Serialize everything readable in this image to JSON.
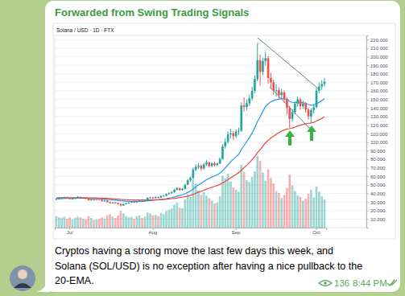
{
  "message": {
    "forwarded_from": "Forwarded from Swing Trading Signals",
    "caption": [
      "Cryptos having a strong move the last few days this week, and",
      "Solana (SOL/USD) is no exception after having a nice pullback to the",
      "20-EMA."
    ],
    "views": 136,
    "time": "8:44 PM"
  },
  "chart_data": {
    "type": "candlestick",
    "title": "Solana / USD · 1D · FTX",
    "categories": [
      null,
      null,
      null,
      null,
      null,
      "Jul",
      null,
      null,
      null,
      null,
      null,
      null,
      null,
      null,
      null,
      null,
      null,
      null,
      null,
      null,
      null,
      null,
      null,
      null,
      null,
      null,
      null,
      null,
      null,
      null,
      null,
      null,
      null,
      null,
      null,
      null,
      "Aug",
      null,
      null,
      null,
      null,
      null,
      null,
      null,
      null,
      null,
      null,
      null,
      null,
      null,
      null,
      null,
      null,
      null,
      null,
      null,
      null,
      null,
      null,
      null,
      null,
      null,
      null,
      null,
      null,
      null,
      null,
      "Sep",
      null,
      null,
      null,
      null,
      null,
      null,
      null,
      null,
      null,
      null,
      null,
      null,
      null,
      null,
      null,
      null,
      null,
      null,
      null,
      null,
      null,
      null,
      null,
      null,
      null,
      null,
      null,
      null,
      null,
      "Oct",
      null,
      null,
      null
    ],
    "series": [
      {
        "type": "candlestick",
        "open": [
          33.0,
          33.5,
          34.2,
          34.8,
          35.4,
          34.9,
          33.6,
          34.1,
          35.0,
          35.9,
          34.3,
          34.8,
          33.9,
          32.1,
          33.0,
          32.6,
          33.4,
          32.5,
          31.0,
          31.8,
          29.9,
          28.7,
          29.4,
          28.9,
          27.6,
          25.9,
          27.8,
          28.4,
          29.3,
          30.1,
          29.6,
          30.8,
          31.6,
          31.2,
          32.4,
          34.9,
          35.2,
          34.6,
          35.8,
          35.1,
          36.9,
          37.4,
          39.2,
          40.3,
          41.5,
          44.2,
          46.1,
          44.0,
          45.3,
          50.2,
          55.4,
          58.1,
          68.0,
          71.2,
          72.4,
          69.0,
          74.1,
          76.3,
          72.0,
          75.2,
          73.1,
          75.0,
          80.4,
          95.2,
          100.3,
          109.1,
          110.2,
          107.0,
          112.5,
          113.4,
          143.0,
          141.2,
          145.6,
          151.3,
          160.2,
          174.1,
          196.0,
          182.3,
          195.1,
          198.4,
          175.2,
          170.0,
          160.4,
          160.9,
          155.1,
          158.3,
          150.2,
          140.1,
          127.3,
          135.2,
          145.0,
          150.1,
          142.2,
          145.3,
          138.1,
          130.2,
          137.4,
          141.0,
          160.3,
          165.2,
          168.1
        ],
        "high": [
          34.6,
          35.1,
          35.9,
          36.5,
          36.2,
          35.5,
          35.0,
          35.8,
          36.9,
          36.4,
          35.7,
          35.3,
          34.4,
          33.8,
          33.9,
          34.2,
          33.9,
          33.0,
          32.6,
          32.2,
          30.5,
          30.1,
          30.0,
          29.4,
          28.0,
          28.4,
          29.1,
          30.0,
          30.9,
          30.8,
          31.5,
          32.4,
          32.3,
          33.1,
          35.6,
          36.3,
          35.9,
          36.6,
          36.5,
          37.6,
          38.5,
          40.1,
          41.4,
          42.8,
          45.3,
          47.6,
          46.9,
          46.4,
          51.4,
          56.9,
          59.7,
          70.2,
          74.1,
          75.3,
          73.8,
          75.6,
          78.9,
          77.5,
          76.4,
          76.9,
          76.3,
          82.1,
          97.8,
          104.5,
          112.6,
          115.3,
          113.1,
          114.8,
          117.2,
          146.5,
          152.4,
          149.8,
          155.1,
          165.0,
          178.3,
          216.0,
          202.5,
          199.2,
          205.3,
          201.1,
          181.4,
          173.2,
          168.1,
          164.2,
          162.7,
          160.5,
          152.3,
          142.6,
          138.4,
          148.3,
          153.2,
          152.0,
          148.6,
          147.0,
          140.2,
          139.5,
          144.3,
          163.5,
          169.8,
          172.6,
          175.2
        ],
        "low": [
          32.1,
          32.9,
          33.6,
          34.0,
          33.8,
          32.8,
          32.9,
          33.5,
          34.4,
          33.6,
          33.7,
          33.1,
          31.5,
          31.3,
          31.9,
          32.0,
          31.8,
          30.4,
          30.3,
          29.3,
          27.9,
          28.1,
          28.2,
          26.8,
          24.8,
          25.4,
          27.2,
          27.9,
          28.8,
          29.0,
          29.1,
          30.2,
          30.6,
          30.9,
          32.0,
          34.1,
          33.8,
          34.0,
          34.5,
          34.8,
          36.2,
          36.9,
          38.6,
          39.5,
          40.8,
          43.4,
          42.8,
          43.1,
          44.8,
          49.6,
          53.8,
          57.3,
          65.9,
          69.1,
          66.5,
          67.8,
          72.4,
          70.3,
          70.8,
          71.5,
          71.9,
          74.2,
          79.6,
          92.1,
          98.4,
          104.2,
          102.5,
          104.9,
          108.6,
          112.1,
          136.0,
          137.2,
          142.3,
          148.7,
          157.5,
          171.2,
          166.4,
          178.5,
          189.6,
          168.3,
          162.5,
          155.6,
          153.4,
          150.3,
          151.2,
          146.1,
          132.4,
          116.8,
          124.1,
          132.6,
          141.5,
          138.3,
          139.1,
          134.5,
          126.4,
          122.8,
          133.2,
          139.6,
          157.4,
          161.3,
          164.8
        ],
        "close": [
          33.5,
          34.2,
          34.8,
          35.4,
          34.9,
          33.6,
          34.1,
          35.0,
          35.9,
          34.3,
          34.8,
          33.9,
          32.1,
          33.0,
          32.6,
          33.4,
          32.5,
          31.0,
          31.8,
          29.9,
          28.7,
          29.4,
          28.9,
          27.6,
          25.9,
          27.8,
          28.4,
          29.3,
          30.1,
          29.6,
          30.8,
          31.6,
          31.2,
          32.4,
          34.9,
          35.2,
          34.6,
          35.8,
          35.1,
          36.9,
          37.4,
          39.2,
          40.3,
          41.5,
          44.2,
          46.1,
          44.0,
          45.3,
          50.2,
          55.4,
          58.1,
          68.0,
          71.2,
          72.4,
          69.0,
          74.1,
          76.3,
          72.0,
          75.2,
          73.1,
          75.0,
          80.4,
          95.2,
          100.3,
          109.1,
          110.2,
          107.0,
          112.5,
          113.4,
          143.0,
          141.2,
          145.6,
          151.3,
          160.2,
          174.1,
          196.0,
          182.3,
          195.1,
          198.4,
          175.2,
          170.0,
          160.4,
          160.9,
          155.1,
          158.3,
          150.2,
          140.1,
          127.3,
          135.2,
          145.0,
          150.1,
          142.2,
          145.3,
          138.1,
          130.2,
          137.4,
          141.0,
          160.3,
          165.2,
          168.1,
          170.9
        ]
      },
      {
        "type": "bar",
        "axis": "y2",
        "values": [
          1.8,
          1.6,
          1.5,
          1.7,
          1.4,
          1.6,
          1.3,
          1.5,
          1.7,
          1.6,
          1.4,
          1.3,
          1.8,
          1.5,
          1.2,
          1.3,
          1.4,
          1.6,
          1.4,
          1.9,
          2.1,
          1.7,
          1.5,
          1.9,
          2.6,
          2.2,
          1.8,
          1.6,
          1.7,
          1.4,
          1.8,
          1.9,
          1.5,
          1.7,
          2.4,
          2.2,
          1.9,
          2.0,
          1.8,
          2.3,
          2.1,
          2.6,
          2.8,
          3.0,
          3.6,
          3.9,
          3.1,
          3.0,
          4.4,
          5.2,
          4.8,
          7.6,
          6.9,
          5.8,
          5.1,
          5.5,
          5.0,
          4.6,
          4.2,
          3.8,
          3.9,
          4.9,
          8.1,
          7.7,
          8.4,
          7.2,
          6.3,
          5.9,
          5.6,
          9.8,
          8.7,
          7.4,
          7.1,
          7.9,
          8.8,
          11.2,
          10.4,
          8.6,
          7.3,
          9.1,
          7.8,
          6.9,
          5.7,
          5.4,
          4.6,
          5.1,
          6.2,
          8.3,
          6.6,
          5.7,
          5.0,
          4.8,
          4.2,
          4.5,
          5.3,
          5.9,
          4.7,
          6.4,
          5.6,
          4.9,
          4.4
        ]
      },
      {
        "type": "line",
        "color": "#2196f3",
        "values": [
          34.0,
          34.0,
          34.1,
          34.2,
          34.2,
          34.2,
          34.2,
          34.3,
          34.4,
          34.4,
          34.4,
          34.4,
          34.2,
          34.1,
          34.0,
          33.9,
          33.8,
          33.5,
          33.3,
          33.0,
          32.7,
          32.4,
          32.2,
          31.9,
          31.4,
          31.2,
          31.0,
          30.9,
          30.8,
          30.7,
          30.7,
          30.8,
          30.8,
          31.0,
          31.4,
          31.7,
          31.9,
          32.3,
          32.5,
          32.9,
          33.3,
          33.8,
          34.4,
          35.1,
          35.9,
          36.9,
          37.6,
          38.4,
          39.7,
          41.2,
          42.8,
          45.2,
          47.7,
          50.0,
          51.8,
          53.9,
          56.0,
          57.6,
          59.2,
          60.5,
          61.9,
          63.7,
          66.7,
          69.9,
          73.6,
          77.1,
          79.9,
          83.0,
          85.9,
          91.3,
          96.0,
          100.7,
          105.5,
          110.7,
          116.7,
          124.2,
          129.7,
          135.9,
          141.8,
          145.0,
          147.4,
          148.6,
          149.8,
          150.3,
          151.1,
          151.0,
          150.0,
          147.8,
          146.6,
          146.4,
          146.8,
          146.4,
          146.3,
          145.5,
          144.0,
          143.4,
          143.2,
          144.8,
          146.7,
          148.7,
          150.8
        ]
      },
      {
        "type": "line",
        "color": "#f44336",
        "values": [
          35.0,
          35.0,
          35.0,
          35.0,
          35.0,
          34.9,
          34.9,
          34.9,
          34.9,
          34.9,
          34.9,
          34.9,
          34.8,
          34.8,
          34.7,
          34.7,
          34.6,
          34.5,
          34.4,
          34.2,
          34.0,
          33.8,
          33.6,
          33.4,
          33.1,
          32.9,
          32.7,
          32.6,
          32.5,
          32.4,
          32.3,
          32.3,
          32.3,
          32.3,
          32.4,
          32.5,
          32.6,
          32.7,
          32.8,
          32.9,
          33.1,
          33.3,
          33.6,
          33.9,
          34.3,
          34.8,
          35.2,
          35.6,
          36.2,
          36.9,
          37.7,
          38.9,
          40.2,
          41.5,
          42.6,
          43.8,
          45.1,
          46.1,
          47.2,
          48.2,
          49.3,
          50.5,
          52.2,
          54.1,
          56.2,
          58.3,
          60.2,
          62.2,
          64.2,
          67.3,
          70.2,
          73.1,
          76.2,
          79.5,
          83.2,
          87.6,
          91.3,
          95.3,
          99.3,
          102.3,
          104.9,
          107.1,
          109.2,
          111.0,
          112.9,
          114.3,
          115.3,
          115.8,
          116.6,
          117.7,
          119.0,
          119.9,
          120.9,
          121.6,
          121.9,
          122.5,
          123.2,
          124.7,
          126.3,
          127.9,
          129.6
        ]
      }
    ],
    "ylim": [
      0,
      225
    ],
    "yticks": [
      {
        "value": 10,
        "label": "10.000"
      },
      {
        "value": 20,
        "label": "20.000"
      },
      {
        "value": 30,
        "label": "30.000"
      },
      {
        "value": 40,
        "label": "40.000"
      },
      {
        "value": 50,
        "label": "50.000"
      },
      {
        "value": 60,
        "label": "60.000"
      },
      {
        "value": 70,
        "label": "70.000"
      },
      {
        "value": 80,
        "label": "80.000"
      },
      {
        "value": 90,
        "label": "90.000"
      },
      {
        "value": 100,
        "label": "100.000"
      },
      {
        "value": 110,
        "label": "110.000"
      },
      {
        "value": 120,
        "label": "120.000"
      },
      {
        "value": 130,
        "label": "130.000"
      },
      {
        "value": 140,
        "label": "140.000"
      },
      {
        "value": 150,
        "label": "150.000"
      },
      {
        "value": 160,
        "label": "160.000"
      },
      {
        "value": 170,
        "label": "170.000"
      },
      {
        "value": 180,
        "label": "180.000"
      },
      {
        "value": 190,
        "label": "190.000"
      },
      {
        "value": 200,
        "label": "200.000"
      },
      {
        "value": 210,
        "label": "210.000"
      },
      {
        "value": 220,
        "label": "220.000"
      }
    ],
    "y2lim": [
      0,
      30
    ],
    "grid": true
  }
}
